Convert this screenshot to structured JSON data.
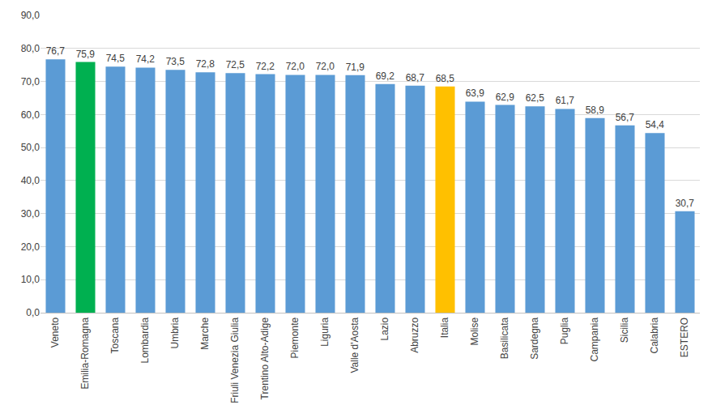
{
  "chart_data": {
    "type": "bar",
    "categories": [
      "Veneto",
      "Emilia-Romagna",
      "Toscana",
      "Lombardia",
      "Umbria",
      "Marche",
      "Friuli Venezia Giulia",
      "Trentino Alto-Adige",
      "Piemonte",
      "Liguria",
      "Valle d'Aosta",
      "Lazio",
      "Abruzzo",
      "Italia",
      "Molise",
      "Basilicata",
      "Sardegna",
      "Puglia",
      "Campania",
      "Sicilia",
      "Calabria",
      "ESTERO"
    ],
    "values": [
      76.7,
      75.9,
      74.5,
      74.2,
      73.5,
      72.8,
      72.5,
      72.2,
      72.0,
      72.0,
      71.9,
      69.2,
      68.7,
      68.5,
      63.9,
      62.9,
      62.5,
      61.7,
      58.9,
      56.7,
      54.4,
      30.7
    ],
    "value_labels": [
      "76,7",
      "75,9",
      "74,5",
      "74,2",
      "73,5",
      "72,8",
      "72,5",
      "72,2",
      "72,0",
      "72,0",
      "71,9",
      "69,2",
      "68,7",
      "68,5",
      "63,9",
      "62,9",
      "62,5",
      "61,7",
      "58,9",
      "56,7",
      "54,4",
      "30,7"
    ],
    "colors": [
      "#5b9bd5",
      "#00b050",
      "#5b9bd5",
      "#5b9bd5",
      "#5b9bd5",
      "#5b9bd5",
      "#5b9bd5",
      "#5b9bd5",
      "#5b9bd5",
      "#5b9bd5",
      "#5b9bd5",
      "#5b9bd5",
      "#5b9bd5",
      "#ffc000",
      "#5b9bd5",
      "#5b9bd5",
      "#5b9bd5",
      "#5b9bd5",
      "#5b9bd5",
      "#5b9bd5",
      "#5b9bd5",
      "#5b9bd5"
    ],
    "ylim": [
      0,
      90
    ],
    "yticks": [
      {
        "value": 0,
        "label": "0,0"
      },
      {
        "value": 10,
        "label": "10,0"
      },
      {
        "value": 20,
        "label": "20,0"
      },
      {
        "value": 30,
        "label": "30,0"
      },
      {
        "value": 40,
        "label": "40,0"
      },
      {
        "value": 50,
        "label": "50,0"
      },
      {
        "value": 60,
        "label": "60,0"
      },
      {
        "value": 70,
        "label": "70,0"
      },
      {
        "value": 80,
        "label": "80,0"
      },
      {
        "value": 90,
        "label": "90,0"
      }
    ],
    "grid": true,
    "data_labels": true
  }
}
